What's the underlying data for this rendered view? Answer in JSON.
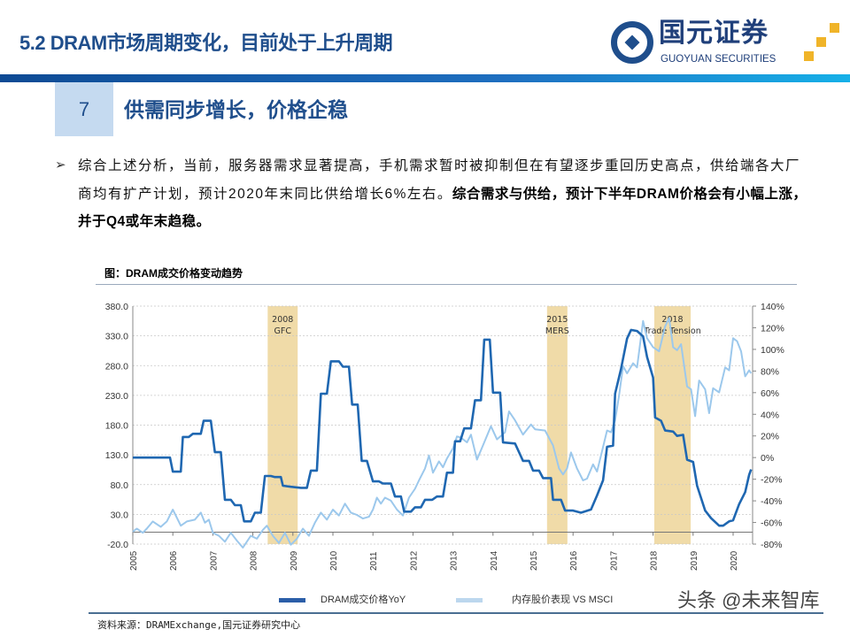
{
  "header": {
    "title": "5.2 DRAM市场周期变化，目前处于上升周期"
  },
  "logo": {
    "name_cn": "国元证券",
    "name_en": "GUOYUAN SECURITIES"
  },
  "section": {
    "number": "7",
    "heading": "供需同步增长，价格企稳"
  },
  "body": {
    "bullet_icon": "arrow-bullet-icon",
    "text_normal": "综合上述分析，当前，服务器需求显著提高，手机需求暂时被抑制但在有望逐步重回历史高点，供给端各大厂商均有扩产计划，预计2020年末同比供给增长6%左右。",
    "text_bold": "综合需求与供给，预计下半年DRAM价格会有小幅上涨，并于Q4或年末趋稳。"
  },
  "figure": {
    "caption": "图：DRAM成交价格变动趋势",
    "source": "资料来源：DRAMExchange,国元证券研究中心"
  },
  "watermark": "头条 @未来智库",
  "colors": {
    "title": "#1f4e8c",
    "dram_series": "#1f67b1",
    "stock_series": "#9cc8ec",
    "shade": "#f0dba8"
  },
  "chart_data": {
    "type": "line",
    "title": "",
    "xlabel": "",
    "x_ticks": [
      "2005",
      "2006",
      "2007",
      "2008",
      "2009",
      "2010",
      "2011",
      "2012",
      "2013",
      "2014",
      "2015",
      "2016",
      "2017",
      "2018",
      "2019",
      "2020"
    ],
    "xlim": [
      2005,
      2020.5
    ],
    "y_left": {
      "range": [
        -20,
        380
      ],
      "ticks": [
        "-20.0",
        "30.0",
        "80.0",
        "130.0",
        "180.0",
        "230.0",
        "280.0",
        "330.0",
        "380.0"
      ]
    },
    "y_right": {
      "range": [
        -80,
        140
      ],
      "ticks": [
        "-80%",
        "-60%",
        "-40%",
        "-20%",
        "0%",
        "20%",
        "40%",
        "60%",
        "80%",
        "100%",
        "120%",
        "140%"
      ]
    },
    "grid": "horizontal dashed",
    "legend_position": "bottom",
    "shaded_periods": [
      {
        "label_line1": "2008",
        "label_line2": "GFC",
        "start": 2008.37,
        "end": 2009.12
      },
      {
        "label_line1": "2015",
        "label_line2": "MERS",
        "start": 2015.35,
        "end": 2015.86
      },
      {
        "label_line1": "2018",
        "label_line2": "Trade Tension",
        "start": 2018.03,
        "end": 2018.94
      }
    ],
    "series": [
      {
        "name": "DRAM成交价格YoY",
        "axis": "right",
        "unit": "%",
        "points": [
          [
            2005,
            0
          ],
          [
            2005.93,
            0
          ],
          [
            2006,
            -13
          ],
          [
            2006.2,
            -13
          ],
          [
            2006.25,
            19
          ],
          [
            2006.4,
            19
          ],
          [
            2006.5,
            22
          ],
          [
            2006.7,
            22
          ],
          [
            2006.77,
            34
          ],
          [
            2006.95,
            34
          ],
          [
            2007.05,
            5
          ],
          [
            2007.2,
            5
          ],
          [
            2007.3,
            -39
          ],
          [
            2007.45,
            -39
          ],
          [
            2007.55,
            -44
          ],
          [
            2007.7,
            -44
          ],
          [
            2007.78,
            -59
          ],
          [
            2007.95,
            -59
          ],
          [
            2008.05,
            -51
          ],
          [
            2008.2,
            -51
          ],
          [
            2008.3,
            -17
          ],
          [
            2008.45,
            -17
          ],
          [
            2008.55,
            -18
          ],
          [
            2008.7,
            -18
          ],
          [
            2008.75,
            -26
          ],
          [
            2008.95,
            -27
          ],
          [
            2009.2,
            -28
          ],
          [
            2009.35,
            -28
          ],
          [
            2009.45,
            -12
          ],
          [
            2009.6,
            -12
          ],
          [
            2009.7,
            59
          ],
          [
            2009.85,
            59
          ],
          [
            2009.95,
            89
          ],
          [
            2010.15,
            89
          ],
          [
            2010.25,
            84
          ],
          [
            2010.4,
            84
          ],
          [
            2010.48,
            49
          ],
          [
            2010.62,
            49
          ],
          [
            2010.72,
            -3
          ],
          [
            2010.85,
            -3
          ],
          [
            2011,
            -22
          ],
          [
            2011.15,
            -22
          ],
          [
            2011.25,
            -24
          ],
          [
            2011.45,
            -24
          ],
          [
            2011.55,
            -36
          ],
          [
            2011.7,
            -36
          ],
          [
            2011.78,
            -50
          ],
          [
            2011.95,
            -50
          ],
          [
            2012.05,
            -46
          ],
          [
            2012.2,
            -46
          ],
          [
            2012.3,
            -39
          ],
          [
            2012.48,
            -39
          ],
          [
            2012.6,
            -36
          ],
          [
            2012.75,
            -36
          ],
          [
            2012.85,
            -14
          ],
          [
            2013,
            -14
          ],
          [
            2013.05,
            15
          ],
          [
            2013.18,
            15
          ],
          [
            2013.28,
            27
          ],
          [
            2013.45,
            27
          ],
          [
            2013.55,
            53
          ],
          [
            2013.7,
            53
          ],
          [
            2013.78,
            109
          ],
          [
            2013.92,
            109
          ],
          [
            2014,
            60
          ],
          [
            2014.18,
            60
          ],
          [
            2014.25,
            14
          ],
          [
            2014.55,
            13
          ],
          [
            2014.75,
            -3
          ],
          [
            2014.9,
            -3
          ],
          [
            2015,
            -12
          ],
          [
            2015.15,
            -12
          ],
          [
            2015.25,
            -19
          ],
          [
            2015.45,
            -19
          ],
          [
            2015.5,
            -39
          ],
          [
            2015.7,
            -39
          ],
          [
            2015.8,
            -49
          ],
          [
            2016,
            -49
          ],
          [
            2016.2,
            -51
          ],
          [
            2016.45,
            -48
          ],
          [
            2016.6,
            -35
          ],
          [
            2016.75,
            -21
          ],
          [
            2016.85,
            10
          ],
          [
            2017,
            11
          ],
          [
            2017.05,
            59
          ],
          [
            2017.2,
            82
          ],
          [
            2017.35,
            110
          ],
          [
            2017.45,
            118
          ],
          [
            2017.6,
            117
          ],
          [
            2017.75,
            112
          ],
          [
            2017.85,
            93
          ],
          [
            2018,
            74
          ],
          [
            2018.05,
            37
          ],
          [
            2018.2,
            34
          ],
          [
            2018.3,
            25
          ],
          [
            2018.5,
            24
          ],
          [
            2018.6,
            20
          ],
          [
            2018.75,
            21
          ],
          [
            2018.85,
            -2
          ],
          [
            2019,
            -4
          ],
          [
            2019.1,
            -26
          ],
          [
            2019.3,
            -49
          ],
          [
            2019.45,
            -56
          ],
          [
            2019.65,
            -63
          ],
          [
            2019.75,
            -63
          ],
          [
            2019.9,
            -59
          ],
          [
            2020,
            -58
          ],
          [
            2020.15,
            -43
          ],
          [
            2020.3,
            -32
          ],
          [
            2020.4,
            -16
          ],
          [
            2020.45,
            -11
          ]
        ]
      },
      {
        "name": "内存股价表现 VS MSCI",
        "axis": "left",
        "points": [
          [
            2005,
            1
          ],
          [
            2005.1,
            6
          ],
          [
            2005.25,
            -1
          ],
          [
            2005.35,
            6
          ],
          [
            2005.5,
            18
          ],
          [
            2005.7,
            9
          ],
          [
            2005.85,
            18
          ],
          [
            2006,
            38
          ],
          [
            2006.2,
            11
          ],
          [
            2006.35,
            18
          ],
          [
            2006.55,
            21
          ],
          [
            2006.7,
            33
          ],
          [
            2006.8,
            16
          ],
          [
            2006.9,
            21
          ],
          [
            2007,
            -1
          ],
          [
            2007.15,
            -6
          ],
          [
            2007.3,
            -16
          ],
          [
            2007.45,
            -1
          ],
          [
            2007.6,
            -14
          ],
          [
            2007.75,
            -26
          ],
          [
            2007.95,
            -6
          ],
          [
            2008.1,
            -11
          ],
          [
            2008.25,
            4
          ],
          [
            2008.35,
            11
          ],
          [
            2008.5,
            -6
          ],
          [
            2008.65,
            -18
          ],
          [
            2008.8,
            -1
          ],
          [
            2008.95,
            -21
          ],
          [
            2009.1,
            -11
          ],
          [
            2009.25,
            6
          ],
          [
            2009.4,
            -6
          ],
          [
            2009.55,
            16
          ],
          [
            2009.7,
            33
          ],
          [
            2009.85,
            21
          ],
          [
            2010,
            38
          ],
          [
            2010.15,
            28
          ],
          [
            2010.3,
            48
          ],
          [
            2010.45,
            33
          ],
          [
            2010.6,
            29
          ],
          [
            2010.75,
            23
          ],
          [
            2010.9,
            26
          ],
          [
            2011,
            38
          ],
          [
            2011.1,
            58
          ],
          [
            2011.2,
            48
          ],
          [
            2011.3,
            58
          ],
          [
            2011.45,
            53
          ],
          [
            2011.6,
            38
          ],
          [
            2011.75,
            28
          ],
          [
            2011.9,
            58
          ],
          [
            2012.05,
            73
          ],
          [
            2012.15,
            87
          ],
          [
            2012.3,
            107
          ],
          [
            2012.4,
            129
          ],
          [
            2012.5,
            100
          ],
          [
            2012.65,
            119
          ],
          [
            2012.75,
            109
          ],
          [
            2012.85,
            124
          ],
          [
            2013,
            141
          ],
          [
            2013.1,
            161
          ],
          [
            2013.2,
            159
          ],
          [
            2013.35,
            151
          ],
          [
            2013.45,
            164
          ],
          [
            2013.6,
            122
          ],
          [
            2013.75,
            146
          ],
          [
            2013.95,
            178
          ],
          [
            2014.1,
            156
          ],
          [
            2014.3,
            168
          ],
          [
            2014.4,
            203
          ],
          [
            2014.55,
            188
          ],
          [
            2014.75,
            164
          ],
          [
            2014.95,
            181
          ],
          [
            2015.05,
            173
          ],
          [
            2015.3,
            171
          ],
          [
            2015.5,
            146
          ],
          [
            2015.65,
            107
          ],
          [
            2015.75,
            97
          ],
          [
            2015.85,
            107
          ],
          [
            2015.95,
            134
          ],
          [
            2016.1,
            107
          ],
          [
            2016.25,
            87
          ],
          [
            2016.35,
            90
          ],
          [
            2016.5,
            114
          ],
          [
            2016.6,
            102
          ],
          [
            2016.7,
            129
          ],
          [
            2016.85,
            171
          ],
          [
            2016.95,
            168
          ],
          [
            2017.05,
            188
          ],
          [
            2017.15,
            230
          ],
          [
            2017.25,
            279
          ],
          [
            2017.35,
            267
          ],
          [
            2017.5,
            284
          ],
          [
            2017.6,
            277
          ],
          [
            2017.75,
            355
          ],
          [
            2017.85,
            326
          ],
          [
            2018,
            311
          ],
          [
            2018.15,
            304
          ],
          [
            2018.3,
            346
          ],
          [
            2018.4,
            360
          ],
          [
            2018.5,
            311
          ],
          [
            2018.6,
            306
          ],
          [
            2018.7,
            316
          ],
          [
            2018.85,
            245
          ],
          [
            2018.95,
            240
          ],
          [
            2019.05,
            195
          ],
          [
            2019.15,
            255
          ],
          [
            2019.3,
            240
          ],
          [
            2019.4,
            200
          ],
          [
            2019.5,
            242
          ],
          [
            2019.65,
            235
          ],
          [
            2019.8,
            277
          ],
          [
            2019.9,
            272
          ],
          [
            2020,
            326
          ],
          [
            2020.1,
            321
          ],
          [
            2020.2,
            304
          ],
          [
            2020.3,
            262
          ],
          [
            2020.4,
            272
          ],
          [
            2020.45,
            267
          ]
        ]
      }
    ]
  }
}
